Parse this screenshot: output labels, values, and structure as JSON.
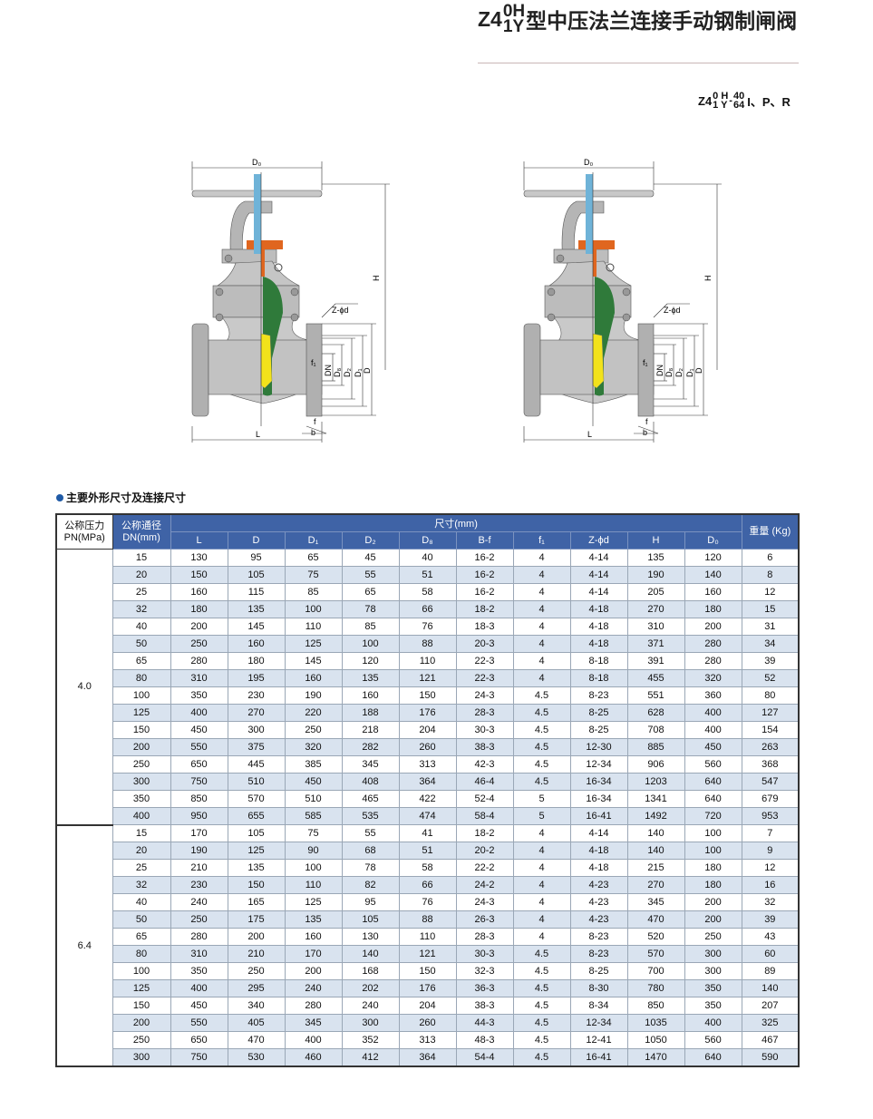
{
  "title": {
    "prefix": "Z4",
    "sup": "0H",
    "sub": "1Y",
    "text": "型中压法兰连接手动钢制闸阀"
  },
  "model": {
    "prefix": "Z4",
    "top": "0 H",
    "bottom": "1 Y",
    "pn_top": "40",
    "pn_bottom": "64",
    "suffix": "I、P、R"
  },
  "diagram_labels": {
    "d0": "D₀",
    "h": "H",
    "zd": "Z-ϕd",
    "f1": "f₁",
    "dn": "DN",
    "d8": "D₈",
    "d2": "D₂",
    "d1": "D₁",
    "d": "D",
    "f": "f",
    "b": "b",
    "l": "L"
  },
  "section_title": "主要外形尺寸及连接尺寸",
  "colors": {
    "header": "#3f63a6",
    "alt_row": "#d9e3ef",
    "valve_green": "#2f7a3a",
    "valve_orange": "#e0661f",
    "stem_blue": "#6fb3d8",
    "wedge_yellow": "#f2e21b"
  },
  "table": {
    "h_pn": "公称压力 PN(MPa)",
    "h_dn": "公称通径 DN(mm)",
    "h_dims": "尺寸(mm)",
    "h_weight": "重量 (Kg)",
    "columns": [
      "L",
      "D",
      "D₁",
      "D₂",
      "D₈",
      "B-f",
      "f₁",
      "Z-ϕd",
      "H",
      "D₀"
    ],
    "groups": [
      {
        "pn": "4.0",
        "rows": [
          [
            "15",
            "130",
            "95",
            "65",
            "45",
            "40",
            "16-2",
            "4",
            "4-14",
            "135",
            "120",
            "6"
          ],
          [
            "20",
            "150",
            "105",
            "75",
            "55",
            "51",
            "16-2",
            "4",
            "4-14",
            "190",
            "140",
            "8"
          ],
          [
            "25",
            "160",
            "115",
            "85",
            "65",
            "58",
            "16-2",
            "4",
            "4-14",
            "205",
            "160",
            "12"
          ],
          [
            "32",
            "180",
            "135",
            "100",
            "78",
            "66",
            "18-2",
            "4",
            "4-18",
            "270",
            "180",
            "15"
          ],
          [
            "40",
            "200",
            "145",
            "110",
            "85",
            "76",
            "18-3",
            "4",
            "4-18",
            "310",
            "200",
            "31"
          ],
          [
            "50",
            "250",
            "160",
            "125",
            "100",
            "88",
            "20-3",
            "4",
            "4-18",
            "371",
            "280",
            "34"
          ],
          [
            "65",
            "280",
            "180",
            "145",
            "120",
            "110",
            "22-3",
            "4",
            "8-18",
            "391",
            "280",
            "39"
          ],
          [
            "80",
            "310",
            "195",
            "160",
            "135",
            "121",
            "22-3",
            "4",
            "8-18",
            "455",
            "320",
            "52"
          ],
          [
            "100",
            "350",
            "230",
            "190",
            "160",
            "150",
            "24-3",
            "4.5",
            "8-23",
            "551",
            "360",
            "80"
          ],
          [
            "125",
            "400",
            "270",
            "220",
            "188",
            "176",
            "28-3",
            "4.5",
            "8-25",
            "628",
            "400",
            "127"
          ],
          [
            "150",
            "450",
            "300",
            "250",
            "218",
            "204",
            "30-3",
            "4.5",
            "8-25",
            "708",
            "400",
            "154"
          ],
          [
            "200",
            "550",
            "375",
            "320",
            "282",
            "260",
            "38-3",
            "4.5",
            "12-30",
            "885",
            "450",
            "263"
          ],
          [
            "250",
            "650",
            "445",
            "385",
            "345",
            "313",
            "42-3",
            "4.5",
            "12-34",
            "906",
            "560",
            "368"
          ],
          [
            "300",
            "750",
            "510",
            "450",
            "408",
            "364",
            "46-4",
            "4.5",
            "16-34",
            "1203",
            "640",
            "547"
          ],
          [
            "350",
            "850",
            "570",
            "510",
            "465",
            "422",
            "52-4",
            "5",
            "16-34",
            "1341",
            "640",
            "679"
          ],
          [
            "400",
            "950",
            "655",
            "585",
            "535",
            "474",
            "58-4",
            "5",
            "16-41",
            "1492",
            "720",
            "953"
          ]
        ]
      },
      {
        "pn": "6.4",
        "rows": [
          [
            "15",
            "170",
            "105",
            "75",
            "55",
            "41",
            "18-2",
            "4",
            "4-14",
            "140",
            "100",
            "7"
          ],
          [
            "20",
            "190",
            "125",
            "90",
            "68",
            "51",
            "20-2",
            "4",
            "4-18",
            "140",
            "100",
            "9"
          ],
          [
            "25",
            "210",
            "135",
            "100",
            "78",
            "58",
            "22-2",
            "4",
            "4-18",
            "215",
            "180",
            "12"
          ],
          [
            "32",
            "230",
            "150",
            "110",
            "82",
            "66",
            "24-2",
            "4",
            "4-23",
            "270",
            "180",
            "16"
          ],
          [
            "40",
            "240",
            "165",
            "125",
            "95",
            "76",
            "24-3",
            "4",
            "4-23",
            "345",
            "200",
            "32"
          ],
          [
            "50",
            "250",
            "175",
            "135",
            "105",
            "88",
            "26-3",
            "4",
            "4-23",
            "470",
            "200",
            "39"
          ],
          [
            "65",
            "280",
            "200",
            "160",
            "130",
            "110",
            "28-3",
            "4",
            "8-23",
            "520",
            "250",
            "43"
          ],
          [
            "80",
            "310",
            "210",
            "170",
            "140",
            "121",
            "30-3",
            "4.5",
            "8-23",
            "570",
            "300",
            "60"
          ],
          [
            "100",
            "350",
            "250",
            "200",
            "168",
            "150",
            "32-3",
            "4.5",
            "8-25",
            "700",
            "300",
            "89"
          ],
          [
            "125",
            "400",
            "295",
            "240",
            "202",
            "176",
            "36-3",
            "4.5",
            "8-30",
            "780",
            "350",
            "140"
          ],
          [
            "150",
            "450",
            "340",
            "280",
            "240",
            "204",
            "38-3",
            "4.5",
            "8-34",
            "850",
            "350",
            "207"
          ],
          [
            "200",
            "550",
            "405",
            "345",
            "300",
            "260",
            "44-3",
            "4.5",
            "12-34",
            "1035",
            "400",
            "325"
          ],
          [
            "250",
            "650",
            "470",
            "400",
            "352",
            "313",
            "48-3",
            "4.5",
            "12-41",
            "1050",
            "560",
            "467"
          ],
          [
            "300",
            "750",
            "530",
            "460",
            "412",
            "364",
            "54-4",
            "4.5",
            "16-41",
            "1470",
            "640",
            "590"
          ]
        ]
      }
    ]
  }
}
